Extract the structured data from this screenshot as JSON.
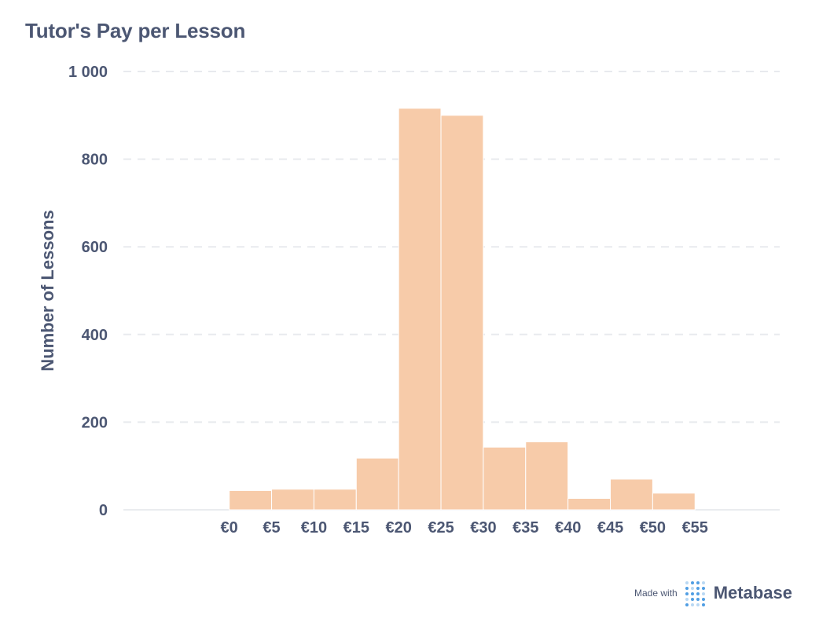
{
  "title": "Tutor's Pay per Lesson",
  "chart_data": {
    "type": "bar",
    "title": "Tutor's Pay per Lesson",
    "xlabel": "",
    "ylabel": "Number of Lessons",
    "x_tick_labels": [
      "€0",
      "€5",
      "€10",
      "€15",
      "€20",
      "€25",
      "€30",
      "€35",
      "€40",
      "€45",
      "€50",
      "€55"
    ],
    "y_tick_labels": [
      "0",
      "200",
      "400",
      "600",
      "800",
      "1 000"
    ],
    "y_ticks": [
      0,
      200,
      400,
      600,
      800,
      1000
    ],
    "ylim": [
      0,
      1000
    ],
    "bins": [
      {
        "start": 0,
        "end": 5,
        "value": 44
      },
      {
        "start": 5,
        "end": 10,
        "value": 47
      },
      {
        "start": 10,
        "end": 15,
        "value": 47
      },
      {
        "start": 15,
        "end": 20,
        "value": 118
      },
      {
        "start": 20,
        "end": 25,
        "value": 916
      },
      {
        "start": 25,
        "end": 30,
        "value": 900
      },
      {
        "start": 30,
        "end": 35,
        "value": 143
      },
      {
        "start": 35,
        "end": 40,
        "value": 155
      },
      {
        "start": 40,
        "end": 45,
        "value": 26
      },
      {
        "start": 45,
        "end": 50,
        "value": 70
      },
      {
        "start": 50,
        "end": 55,
        "value": 38
      }
    ],
    "bar_color": "#f7cba9",
    "grid": true
  },
  "footer": {
    "made_with": "Made with",
    "brand": "Metabase"
  }
}
